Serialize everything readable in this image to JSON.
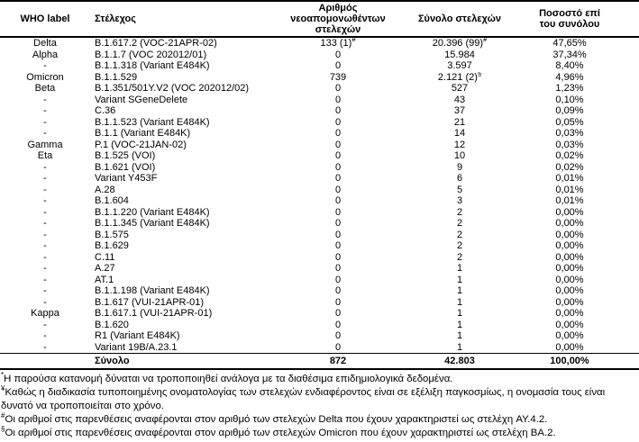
{
  "table": {
    "headers": {
      "who_label": "WHO label",
      "strain": "Στέλεχος",
      "newly_isolated": "Αριθμός\nνεοαπομονωθέντων\nστελεχών",
      "total_strains": "Σύνολο στελεχών",
      "percentage": "Ποσοστό επί\nτου συνόλου"
    },
    "rows": [
      {
        "who": "Delta",
        "strain": "B.1.617.2 (VOC-21APR-02)",
        "newly": "133 (1)",
        "newly_sup": "#",
        "total": "20.396 (99)",
        "total_sup": "#",
        "pct": "47,65%"
      },
      {
        "who": "Alpha",
        "strain": "B.1.1.7 (VOC 202012/01)",
        "newly": "0",
        "total": "15.984",
        "pct": "37,34%"
      },
      {
        "who": "-",
        "strain": "B.1.1.318 (Variant E484K)",
        "newly": "0",
        "total": "3.597",
        "pct": "8,40%"
      },
      {
        "who": "Omicron",
        "strain": "B.1.1.529",
        "newly": "739",
        "total": "2.121 (2)",
        "total_sup": "§",
        "pct": "4,96%"
      },
      {
        "who": "Beta",
        "strain": "B.1.351/501Y.V2 (VOC 202012/02)",
        "newly": "0",
        "total": "527",
        "pct": "1,23%"
      },
      {
        "who": "-",
        "strain": "Variant SGeneDelete",
        "newly": "0",
        "total": "43",
        "pct": "0,10%"
      },
      {
        "who": "-",
        "strain": "C.36",
        "newly": "0",
        "total": "37",
        "pct": "0,09%"
      },
      {
        "who": "-",
        "strain": "B.1.1.523 (Variant E484K)",
        "newly": "0",
        "total": "21",
        "pct": "0,05%"
      },
      {
        "who": "-",
        "strain": "B.1.1 (Variant E484K)",
        "newly": "0",
        "total": "14",
        "pct": "0,03%"
      },
      {
        "who": "Gamma",
        "strain": "P.1 (VOC-21JAN-02)",
        "newly": "0",
        "total": "12",
        "pct": "0,03%"
      },
      {
        "who": "Eta",
        "strain": "B.1.525 (VOI)",
        "newly": "0",
        "total": "10",
        "pct": "0,02%"
      },
      {
        "who": "-",
        "strain": "B.1.621 (VOI)",
        "newly": "0",
        "total": "9",
        "pct": "0,02%"
      },
      {
        "who": "-",
        "strain": "Variant Y453F",
        "newly": "0",
        "total": "6",
        "pct": "0,01%"
      },
      {
        "who": "-",
        "strain": "A.28",
        "newly": "0",
        "total": "5",
        "pct": "0,01%"
      },
      {
        "who": "-",
        "strain": "B.1.604",
        "newly": "0",
        "total": "3",
        "pct": "0,01%"
      },
      {
        "who": "-",
        "strain": "B.1.1.220 (Variant E484K)",
        "newly": "0",
        "total": "2",
        "pct": "0,00%"
      },
      {
        "who": "-",
        "strain": "B.1.1.345 (Variant E484K)",
        "newly": "0",
        "total": "2",
        "pct": "0,00%"
      },
      {
        "who": "-",
        "strain": "B.1.575",
        "newly": "0",
        "total": "2",
        "pct": "0,00%"
      },
      {
        "who": "-",
        "strain": "B.1.629",
        "newly": "0",
        "total": "2",
        "pct": "0,00%"
      },
      {
        "who": "-",
        "strain": "C.11",
        "newly": "0",
        "total": "2",
        "pct": "0,00%"
      },
      {
        "who": "-",
        "strain": "A.27",
        "newly": "0",
        "total": "1",
        "pct": "0,00%"
      },
      {
        "who": "-",
        "strain": "AT.1",
        "newly": "0",
        "total": "1",
        "pct": "0,00%"
      },
      {
        "who": "-",
        "strain": "B.1.1.198 (Variant E484K)",
        "newly": "0",
        "total": "1",
        "pct": "0,00%"
      },
      {
        "who": "-",
        "strain": "B.1.617 (VUI-21APR-01)",
        "newly": "0",
        "total": "1",
        "pct": "0,00%"
      },
      {
        "who": "Kappa",
        "strain": "B.1.617.1 (VUI-21APR-01)",
        "newly": "0",
        "total": "1",
        "pct": "0,00%"
      },
      {
        "who": "-",
        "strain": "B.1.620",
        "newly": "0",
        "total": "1",
        "pct": "0,00%"
      },
      {
        "who": "-",
        "strain": "R1 (Variant E484K)",
        "newly": "0",
        "total": "1",
        "pct": "0,00%"
      },
      {
        "who": "-",
        "strain": "Variant 19B/A.23.1",
        "newly": "0",
        "total": "1",
        "pct": "0,00%"
      }
    ],
    "total_row": {
      "who": "",
      "label": "Σύνολο",
      "newly": "872",
      "total": "42.803",
      "pct": "100,00%"
    }
  },
  "footnotes": [
    {
      "marker": "*",
      "text": "Η παρούσα κατανομή δύναται να τροποποιηθεί ανάλογα με τα διαθέσιμα επιδημιολογικά δεδομένα."
    },
    {
      "marker": "¥",
      "text": "Καθώς η διαδικασία τυποποιημένης ονοματολογίας των στελεχών ενδιαφέροντος είναι σε εξέλιξη παγκοσμίως, η ονομασία τους είναι δυνατό να τροποποιείται στο χρόνο."
    },
    {
      "marker": "#",
      "text": "Οι αριθμοί στις παρενθέσεις αναφέρονται στον αριθμό των στελεχών Delta που έχουν χαρακτηριστεί ως στελέχη AY.4.2."
    },
    {
      "marker": "§",
      "text": "Οι αριθμοί στις παρενθέσεις αναφέρονται στον αριθμό των στελεχών Omicron που έχουν χαρακτηριστεί ως στελέχη BA.2."
    }
  ],
  "colors": {
    "text": "#000000",
    "background": "#ffffff",
    "border": "#000000"
  }
}
